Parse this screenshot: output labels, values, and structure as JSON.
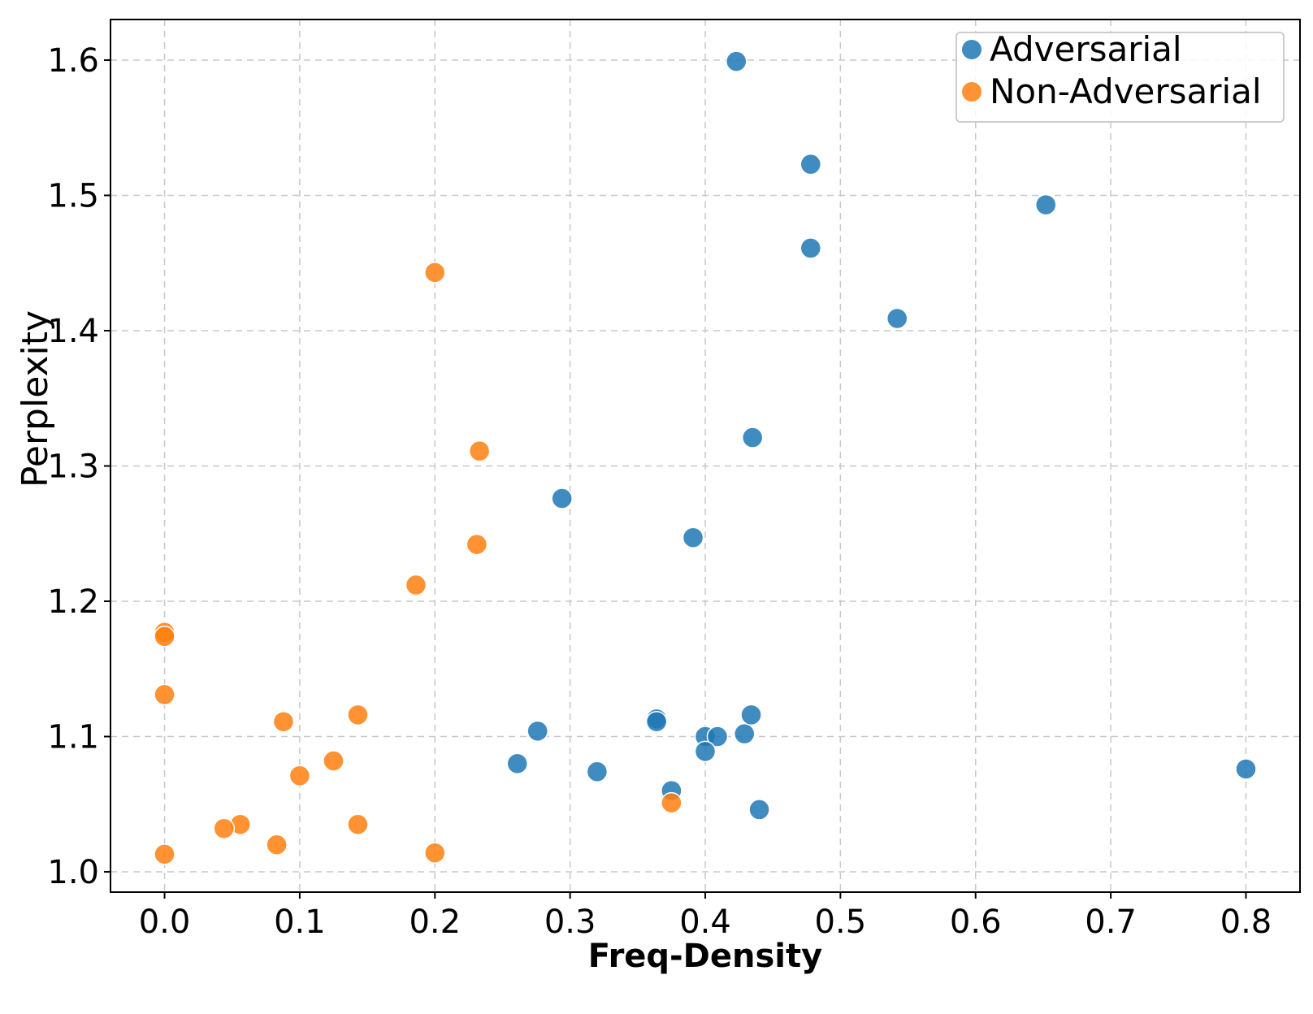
{
  "chart_data": {
    "type": "scatter",
    "xlabel": "Freq-Density",
    "ylabel": "Perplexity",
    "xlim": [
      -0.04,
      0.84
    ],
    "ylim": [
      0.985,
      1.63
    ],
    "xticks": [
      0.0,
      0.1,
      0.2,
      0.3,
      0.4,
      0.5,
      0.6,
      0.7,
      0.8
    ],
    "xtick_labels": [
      "0.0",
      "0.1",
      "0.2",
      "0.3",
      "0.4",
      "0.5",
      "0.6",
      "0.7",
      "0.8"
    ],
    "yticks": [
      1.0,
      1.1,
      1.2,
      1.3,
      1.4,
      1.5,
      1.6
    ],
    "ytick_labels": [
      "1.0",
      "1.1",
      "1.2",
      "1.3",
      "1.4",
      "1.5",
      "1.6"
    ],
    "grid": true,
    "legend_position": "top-right",
    "series": [
      {
        "name": "Adversarial",
        "color": "#1f77b4",
        "points": [
          [
            0.423,
            1.599
          ],
          [
            0.478,
            1.523
          ],
          [
            0.652,
            1.493
          ],
          [
            0.478,
            1.461
          ],
          [
            0.542,
            1.409
          ],
          [
            0.435,
            1.321
          ],
          [
            0.294,
            1.276
          ],
          [
            0.391,
            1.247
          ],
          [
            0.276,
            1.104
          ],
          [
            0.261,
            1.08
          ],
          [
            0.32,
            1.074
          ],
          [
            0.364,
            1.113
          ],
          [
            0.364,
            1.111
          ],
          [
            0.375,
            1.06
          ],
          [
            0.4,
            1.1
          ],
          [
            0.409,
            1.1
          ],
          [
            0.4,
            1.089
          ],
          [
            0.429,
            1.102
          ],
          [
            0.434,
            1.116
          ],
          [
            0.44,
            1.046
          ],
          [
            0.8,
            1.076
          ]
        ]
      },
      {
        "name": "Non-Adversarial",
        "color": "#ff7f0e",
        "points": [
          [
            0.2,
            1.443
          ],
          [
            0.233,
            1.311
          ],
          [
            0.231,
            1.242
          ],
          [
            0.186,
            1.212
          ],
          [
            0.0,
            1.177
          ],
          [
            0.0,
            1.174
          ],
          [
            0.0,
            1.131
          ],
          [
            0.088,
            1.111
          ],
          [
            0.143,
            1.116
          ],
          [
            0.125,
            1.082
          ],
          [
            0.1,
            1.071
          ],
          [
            0.056,
            1.035
          ],
          [
            0.044,
            1.032
          ],
          [
            0.143,
            1.035
          ],
          [
            0.083,
            1.02
          ],
          [
            0.0,
            1.013
          ],
          [
            0.2,
            1.014
          ],
          [
            0.375,
            1.051
          ]
        ]
      }
    ]
  }
}
